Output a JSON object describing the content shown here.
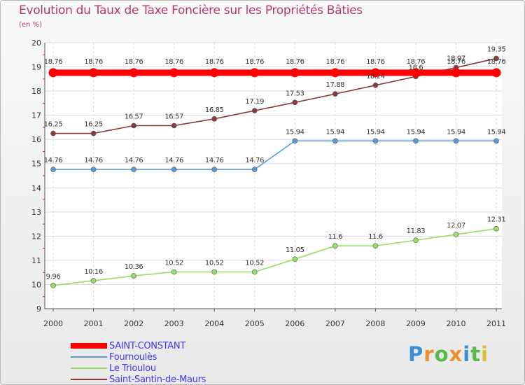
{
  "chart_data": {
    "type": "line",
    "title": "Evolution du Taux de Taxe Foncière sur les Propriétés Bâties",
    "ylabel": "(en %)",
    "xlabel": "",
    "ylim": [
      9,
      20
    ],
    "yticks": [
      9,
      10,
      11,
      12,
      13,
      14,
      15,
      16,
      17,
      18,
      19,
      20
    ],
    "categories": [
      "2000",
      "2001",
      "2002",
      "2003",
      "2004",
      "2005",
      "2006",
      "2007",
      "2008",
      "2009",
      "2010",
      "2011"
    ],
    "grid": true,
    "series": [
      {
        "name": "SAINT-CONSTANT",
        "color": "#ff0000",
        "values": [
          18.76,
          18.76,
          18.76,
          18.76,
          18.76,
          18.76,
          18.76,
          18.76,
          18.76,
          18.76,
          18.76,
          18.76
        ],
        "labels": [
          "18.76",
          "18.76",
          "18.76",
          "18.76",
          "18.76",
          "18.76",
          "18.76",
          "18.76",
          "18.76",
          "18.76",
          "18.76",
          "18.76"
        ]
      },
      {
        "name": "Fournoulès",
        "color": "#5b9bd5",
        "values": [
          14.76,
          14.76,
          14.76,
          14.76,
          14.76,
          14.76,
          15.94,
          15.94,
          15.94,
          15.94,
          15.94,
          15.94
        ],
        "labels": [
          "14.76",
          "14.76",
          "14.76",
          "14.76",
          "14.76",
          "14.76",
          "15.94",
          "15.94",
          "15.94",
          "15.94",
          "15.94",
          "15.94"
        ]
      },
      {
        "name": "Le Trioulou",
        "color": "#99dd66",
        "values": [
          9.96,
          10.16,
          10.36,
          10.52,
          10.52,
          10.52,
          11.05,
          11.6,
          11.6,
          11.83,
          12.07,
          12.31
        ],
        "labels": [
          "9.96",
          "10.16",
          "10.36",
          "10.52",
          "10.52",
          "10.52",
          "11.05",
          "11.6",
          "11.6",
          "11.83",
          "12.07",
          "12.31"
        ]
      },
      {
        "name": "Saint-Santin-de-Maurs",
        "color": "#8b3a3a",
        "values": [
          16.25,
          16.25,
          16.57,
          16.57,
          16.85,
          17.19,
          17.53,
          17.88,
          18.24,
          18.6,
          18.97,
          19.35
        ],
        "labels": [
          "16.25",
          "16.25",
          "16.57",
          "16.57",
          "16.85",
          "17.19",
          "17.53",
          "17.88",
          "18.24",
          "18.6",
          "18.97",
          "19.35"
        ]
      }
    ],
    "legend_position": "bottom-left"
  },
  "brand": {
    "letters": [
      "P",
      "r",
      "o",
      "x",
      "i",
      "t",
      "i"
    ],
    "colors": [
      "#3a8fd6",
      "#e8912e",
      "#58b848",
      "#e8912e",
      "#3a8fd6",
      "#58b848",
      "#d8c030"
    ]
  }
}
